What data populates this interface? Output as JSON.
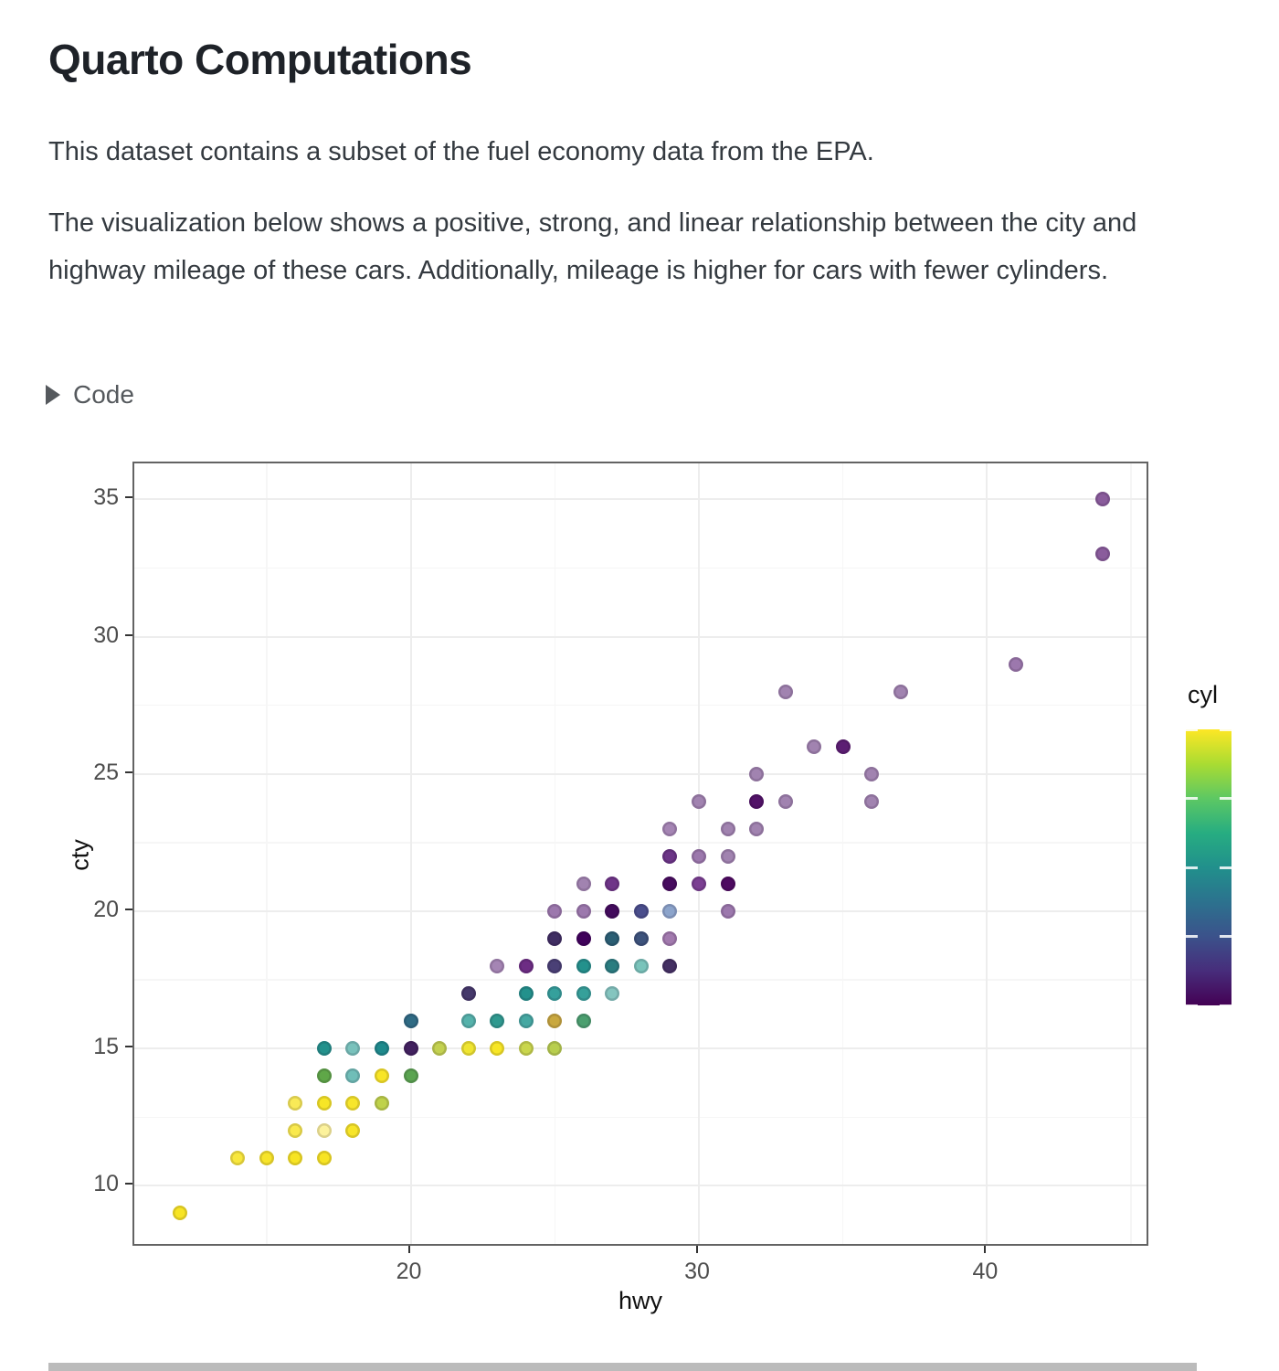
{
  "header": {
    "title": "Quarto Computations"
  },
  "paragraphs": [
    "This dataset contains a subset of the fuel economy data from the EPA.",
    "The visualization below shows a positive, strong, and linear relationship between the city and highway mileage of these cars. Additionally, mileage is higher for cars with fewer cylinders."
  ],
  "code_toggle": {
    "label": "Code",
    "icon": "caret-right-icon",
    "state": "collapsed"
  },
  "chart_data": {
    "type": "scatter",
    "xlabel": "hwy",
    "ylabel": "cty",
    "xlim": [
      10.41,
      45.66
    ],
    "ylim": [
      7.75,
      36.31
    ],
    "x_ticks": [
      20,
      30,
      40
    ],
    "x_tick_labels": [
      "20",
      "30",
      "40"
    ],
    "x_minor": [
      15,
      25,
      35,
      45
    ],
    "y_ticks": [
      10,
      15,
      20,
      25,
      30,
      35
    ],
    "y_tick_labels": [
      "10",
      "15",
      "20",
      "25",
      "30",
      "35"
    ],
    "y_minor": [
      12.5,
      17.5,
      22.5,
      27.5,
      32.5
    ],
    "grid": true,
    "panel_border_color": "#636363",
    "grid_major_color": "#ededed",
    "grid_minor_color": "#f6f6f6",
    "tick_label_color": "#4d4d4d",
    "legend": {
      "title": "cyl",
      "position": "right",
      "scale": "viridis-continuous",
      "min": 4,
      "max": 8,
      "tick_values": [
        4,
        5,
        6,
        7,
        8
      ],
      "gradient_stops": [
        "#440154",
        "#472D7B",
        "#3B528B",
        "#2C728E",
        "#21908C",
        "#27AD81",
        "#5DC863",
        "#AADC32",
        "#FDE725"
      ],
      "cyl_colors": {
        "4": "#440154",
        "5": "#3B528B",
        "6": "#21918C",
        "8": "#FDE725"
      }
    },
    "point_format": [
      "hwy",
      "cty",
      "cyl",
      "rendered_color"
    ],
    "points": [
      [
        12,
        9,
        8,
        "#F7E424"
      ],
      [
        14,
        11,
        8,
        "#F8E73C"
      ],
      [
        15,
        11,
        8,
        "#F7E42A"
      ],
      [
        16,
        11,
        8,
        "#F7E424"
      ],
      [
        17,
        11,
        8,
        "#F7E424"
      ],
      [
        16,
        12,
        8,
        "#F9E94E"
      ],
      [
        17,
        12,
        8,
        "#FCF29C"
      ],
      [
        18,
        12,
        8,
        "#F7E528"
      ],
      [
        16,
        13,
        8,
        "#F9EA57"
      ],
      [
        17,
        13,
        8,
        "#F7E626"
      ],
      [
        18,
        13,
        8,
        "#F7E62B"
      ],
      [
        19,
        13,
        "6+8",
        "#BFD24A"
      ],
      [
        17,
        14,
        "6+8",
        "#5FA748"
      ],
      [
        18,
        14,
        6,
        "#70BEB8"
      ],
      [
        19,
        14,
        8,
        "#F8E526"
      ],
      [
        20,
        14,
        "6+8",
        "#5AA450"
      ],
      [
        17,
        15,
        6,
        "#23918C"
      ],
      [
        18,
        15,
        6,
        "#79C2BC"
      ],
      [
        19,
        15,
        6,
        "#1E8A8C"
      ],
      [
        20,
        15,
        "4+6+8",
        "#42215F"
      ],
      [
        21,
        15,
        "6+8",
        "#C3D150"
      ],
      [
        22,
        15,
        8,
        "#EFE530"
      ],
      [
        23,
        15,
        8,
        "#F7E626"
      ],
      [
        24,
        15,
        "6+8",
        "#C9D64C"
      ],
      [
        25,
        15,
        "6+8",
        "#B8CE4E"
      ],
      [
        20,
        16,
        "5+6",
        "#2F6B84"
      ],
      [
        22,
        16,
        6,
        "#55B2AB"
      ],
      [
        23,
        16,
        6,
        "#2F998F"
      ],
      [
        24,
        16,
        6,
        "#45A8A2"
      ],
      [
        25,
        16,
        "6+8",
        "#C9A83F"
      ],
      [
        26,
        16,
        "6+8",
        "#4B9F6F"
      ],
      [
        22,
        17,
        "4+5",
        "#45396B"
      ],
      [
        24,
        17,
        6,
        "#23918C"
      ],
      [
        25,
        17,
        6,
        "#35A09C"
      ],
      [
        26,
        17,
        6,
        "#36A09A"
      ],
      [
        27,
        17,
        6,
        "#84C5BF"
      ],
      [
        23,
        18,
        4,
        "#A585B4"
      ],
      [
        24,
        18,
        4,
        "#6D2D84"
      ],
      [
        25,
        18,
        "4+5",
        "#4A4076"
      ],
      [
        26,
        18,
        6,
        "#23918C"
      ],
      [
        27,
        18,
        6,
        "#2A7D80"
      ],
      [
        28,
        18,
        6,
        "#7AC4BB"
      ],
      [
        29,
        18,
        "4+5",
        "#443063"
      ],
      [
        25,
        19,
        "4+5",
        "#402E63"
      ],
      [
        26,
        19,
        4,
        "#41025C"
      ],
      [
        27,
        19,
        "5+6",
        "#2B5F74"
      ],
      [
        28,
        19,
        5,
        "#3D537C"
      ],
      [
        29,
        19,
        4,
        "#A27AAE"
      ],
      [
        25,
        20,
        4,
        "#9C78AD"
      ],
      [
        26,
        20,
        4,
        "#9C78AD"
      ],
      [
        27,
        20,
        4,
        "#430B5D"
      ],
      [
        28,
        20,
        5,
        "#4A4E8C"
      ],
      [
        29,
        20,
        5,
        "#8CA4CB"
      ],
      [
        31,
        20,
        4,
        "#9C78AD"
      ],
      [
        26,
        21,
        4,
        "#A183B0"
      ],
      [
        27,
        21,
        4,
        "#6F3588"
      ],
      [
        29,
        21,
        4,
        "#470C5F"
      ],
      [
        30,
        21,
        4,
        "#7B3F92"
      ],
      [
        31,
        21,
        4,
        "#4E0A61"
      ],
      [
        29,
        22,
        4,
        "#6C3587"
      ],
      [
        30,
        22,
        4,
        "#9C78AD"
      ],
      [
        31,
        22,
        4,
        "#A183B0"
      ],
      [
        29,
        23,
        4,
        "#A585B4"
      ],
      [
        31,
        23,
        4,
        "#A183B0"
      ],
      [
        32,
        23,
        4,
        "#A183B0"
      ],
      [
        30,
        24,
        4,
        "#A183B0"
      ],
      [
        32,
        24,
        4,
        "#521368"
      ],
      [
        33,
        24,
        4,
        "#A183B0"
      ],
      [
        36,
        24,
        4,
        "#A183B0"
      ],
      [
        32,
        25,
        4,
        "#A183B0"
      ],
      [
        36,
        25,
        4,
        "#A183B0"
      ],
      [
        34,
        26,
        4,
        "#A183B0"
      ],
      [
        35,
        26,
        4,
        "#5C1E73"
      ],
      [
        33,
        28,
        4,
        "#A183B0"
      ],
      [
        37,
        28,
        4,
        "#A183B0"
      ],
      [
        41,
        29,
        4,
        "#9C78AD"
      ],
      [
        44,
        33,
        4,
        "#8A5C9C"
      ],
      [
        44,
        35,
        4,
        "#8A5C9C"
      ]
    ]
  }
}
